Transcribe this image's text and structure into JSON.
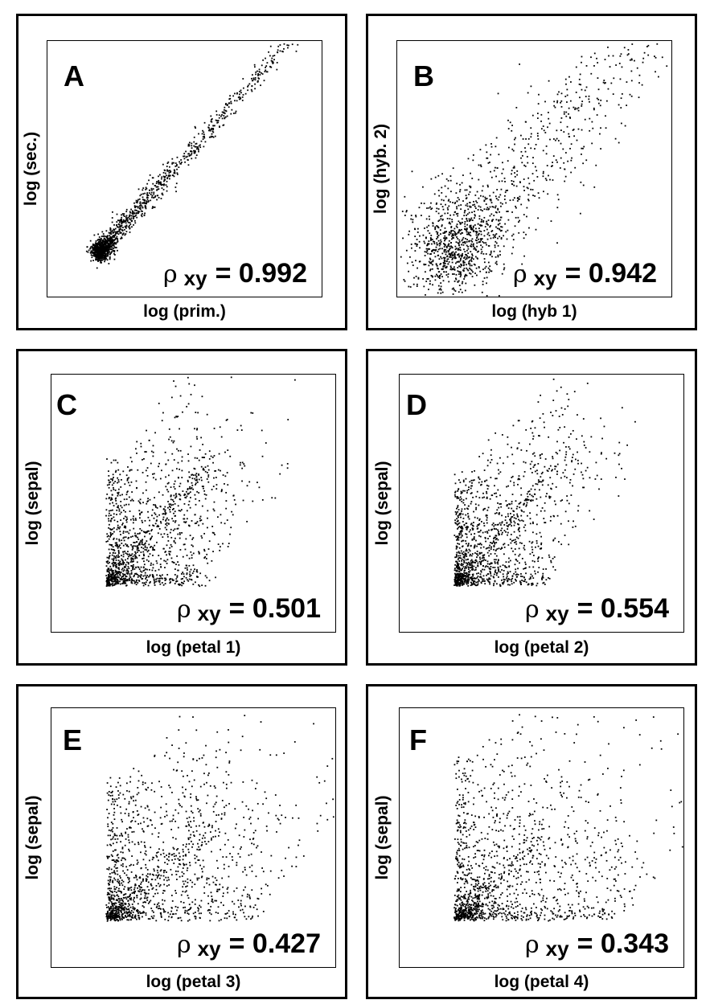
{
  "chart_data": [
    {
      "type": "scatter",
      "panel_label": "A",
      "xlabel": "log (prim.)",
      "ylabel": "log (sec.)",
      "rho": "0.992",
      "rho_symbol": "ρ",
      "rho_subscript": "xy",
      "pattern": "tight-diagonal"
    },
    {
      "type": "scatter",
      "panel_label": "B",
      "xlabel": "log (hyb 1)",
      "ylabel": "log (hyb. 2)",
      "rho": "0.942",
      "rho_symbol": "ρ",
      "rho_subscript": "xy",
      "pattern": "diagonal"
    },
    {
      "type": "scatter",
      "panel_label": "C",
      "xlabel": "log (petal 1)",
      "ylabel": "log (sepal)",
      "rho": "0.501",
      "rho_symbol": "ρ",
      "rho_subscript": "xy",
      "pattern": "spread"
    },
    {
      "type": "scatter",
      "panel_label": "D",
      "xlabel": "log (petal 2)",
      "ylabel": "log (sepal)",
      "rho": "0.554",
      "rho_symbol": "ρ",
      "rho_subscript": "xy",
      "pattern": "spread"
    },
    {
      "type": "scatter",
      "panel_label": "E",
      "xlabel": "log (petal  3)",
      "ylabel": "log (sepal)",
      "rho": "0.427",
      "rho_symbol": "ρ",
      "rho_subscript": "xy",
      "pattern": "spread-wide"
    },
    {
      "type": "scatter",
      "panel_label": "F",
      "xlabel": "log (petal 4)",
      "ylabel": "log (sepal)",
      "rho": "0.343",
      "rho_symbol": "ρ",
      "rho_subscript": "xy",
      "pattern": "spread-wide"
    }
  ]
}
